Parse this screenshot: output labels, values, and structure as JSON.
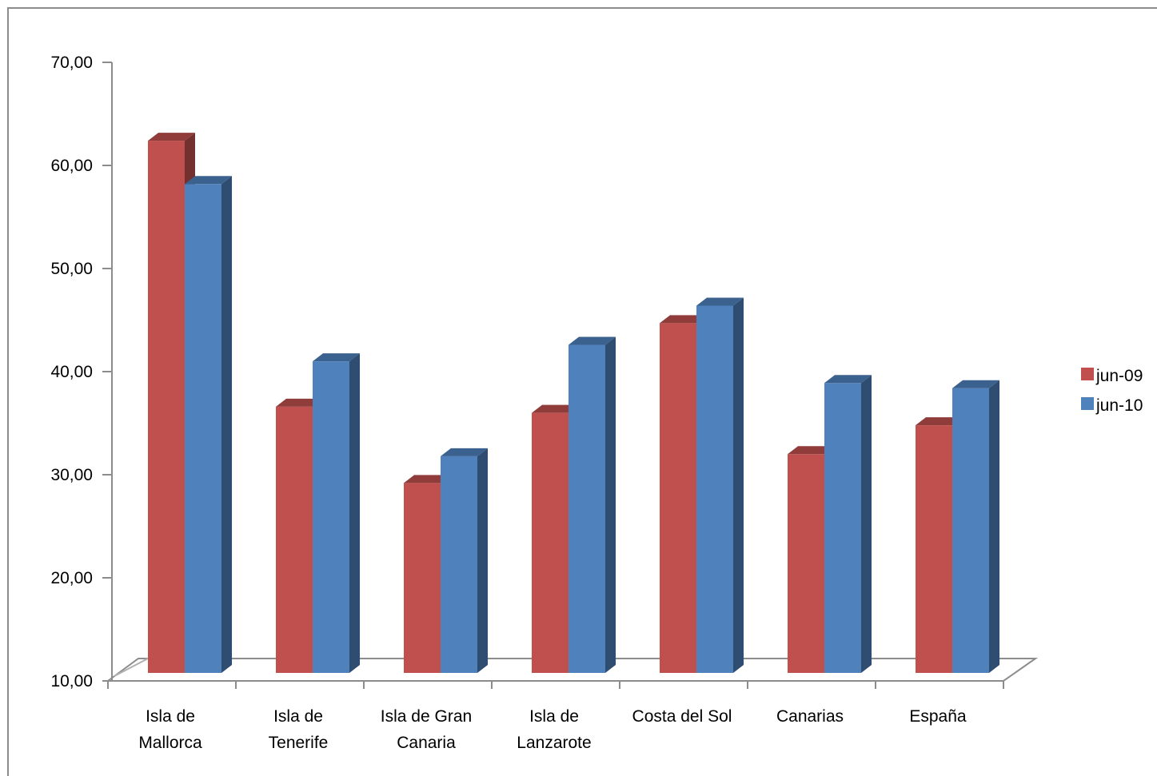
{
  "chart_data": {
    "type": "bar",
    "style": "3d-clustered-column",
    "title": "",
    "xlabel": "",
    "ylabel": "",
    "ylim": [
      10,
      70
    ],
    "yticks": [
      "10,00",
      "20,00",
      "30,00",
      "40,00",
      "50,00",
      "60,00",
      "70,00"
    ],
    "ytick_values": [
      10,
      20,
      30,
      40,
      50,
      60,
      70
    ],
    "categories": [
      [
        "Isla de",
        "Mallorca"
      ],
      [
        "Isla de",
        "Tenerife"
      ],
      [
        "Isla de Gran",
        "Canaria"
      ],
      [
        "Isla de",
        "Lanzarote"
      ],
      [
        "Costa del Sol"
      ],
      [
        "Canarias"
      ],
      [
        "España"
      ]
    ],
    "series": [
      {
        "name": "jun-09",
        "color": "#c0504d",
        "values": [
          61.0,
          35.2,
          27.8,
          34.6,
          43.3,
          30.6,
          33.4
        ]
      },
      {
        "name": "jun-10",
        "color": "#4f81bd",
        "values": [
          56.8,
          39.6,
          30.4,
          41.2,
          45.0,
          37.5,
          37.0
        ]
      }
    ],
    "grid": false,
    "legend": "right"
  }
}
